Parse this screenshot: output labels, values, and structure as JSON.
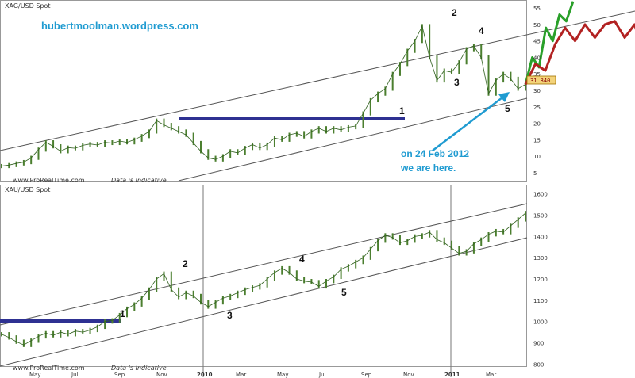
{
  "site": "hubertmoolman.wordpress.com",
  "note_lines": [
    "on 24 Feb 2012",
    "we are here."
  ],
  "colors": {
    "candle": "#4b7f2f",
    "channel": "#555555",
    "resistance": "#2e3192",
    "arrow": "#1f9bd1",
    "bull_path": "#2aa02a",
    "bear_path": "#b22222",
    "badge_fill": "#f3d37a",
    "badge_border": "#a07000"
  },
  "chart_data": [
    {
      "type": "line",
      "symbol": "XAG/USD Spot",
      "footer": "www.ProRealTime.com",
      "footer_note": "Data is Indicative.",
      "price_badge": "31.840",
      "yticks": [
        5,
        10,
        15,
        20,
        25,
        30,
        35,
        40,
        45,
        50,
        55
      ],
      "ylim": [
        4,
        56
      ],
      "series": [
        {
          "values": [
            7,
            7.3,
            7.8,
            8.2,
            9.5,
            12,
            14.2,
            13,
            11.5,
            12.6,
            12.4,
            13.3,
            13.7,
            13.4,
            14.2,
            14,
            14.6,
            14.2,
            15,
            16.1,
            17.5,
            20.8,
            19.5,
            18.5,
            17.5,
            16.5,
            14,
            11.5,
            9.5,
            9,
            10,
            11.5,
            11,
            12.5,
            13.5,
            12.5,
            13.5,
            15.5,
            15,
            16.5,
            17,
            16,
            17.5,
            18.5,
            17.5,
            18.5,
            18,
            18.8,
            19.2,
            23,
            27,
            29,
            30.5,
            35,
            38,
            42,
            45,
            49.5,
            40,
            33,
            36,
            35.5,
            38.5,
            42.5,
            43.5,
            40,
            29,
            33,
            35,
            33.5,
            30.5,
            31.8
          ]
        }
      ],
      "waves": [
        {
          "label": "1",
          "value": 21
        },
        {
          "label": "2",
          "value": 49.5
        },
        {
          "label": "3",
          "value": 33
        },
        {
          "label": "4",
          "value": 43.5
        },
        {
          "label": "5",
          "value": 29
        }
      ],
      "projections": [
        {
          "name": "bullish",
          "values": [
            31.8,
            40,
            37,
            49,
            45,
            53,
            51,
            57
          ]
        },
        {
          "name": "bearish",
          "values": [
            31.8,
            38,
            36,
            44,
            49,
            45,
            50,
            46,
            50,
            51,
            46,
            50,
            40
          ]
        }
      ]
    },
    {
      "type": "line",
      "symbol": "XAU/USD Spot",
      "footer": "www.ProRealTime.com",
      "footer_note": "Data is Indicative.",
      "yticks": [
        800,
        900,
        1000,
        1100,
        1200,
        1300,
        1400,
        1500,
        1600
      ],
      "ylim": [
        790,
        1625
      ],
      "xticks": [
        "May",
        "Jul",
        "Sep",
        "Nov",
        "2010",
        "Mar",
        "May",
        "Jul",
        "Sep",
        "Nov",
        "2011",
        "Mar"
      ],
      "series": [
        {
          "values": [
            940,
            925,
            905,
            890,
            910,
            930,
            945,
            935,
            950,
            940,
            955,
            950,
            960,
            975,
            1000,
            1005,
            1030,
            1060,
            1080,
            1110,
            1150,
            1200,
            1225,
            1150,
            1115,
            1135,
            1120,
            1090,
            1070,
            1090,
            1110,
            1120,
            1135,
            1150,
            1160,
            1170,
            1200,
            1230,
            1250,
            1230,
            1200,
            1190,
            1185,
            1165,
            1190,
            1210,
            1245,
            1260,
            1280,
            1300,
            1340,
            1380,
            1405,
            1395,
            1370,
            1380,
            1400,
            1405,
            1420,
            1385,
            1370,
            1345,
            1320,
            1330,
            1365,
            1385,
            1410,
            1425,
            1420,
            1450,
            1480,
            1510
          ]
        }
      ],
      "waves": [
        {
          "label": "1",
          "value": 985
        },
        {
          "label": "2",
          "value": 1225
        },
        {
          "label": "3",
          "value": 1070
        },
        {
          "label": "4",
          "value": 1250
        },
        {
          "label": "5",
          "value": 1160
        }
      ]
    }
  ]
}
